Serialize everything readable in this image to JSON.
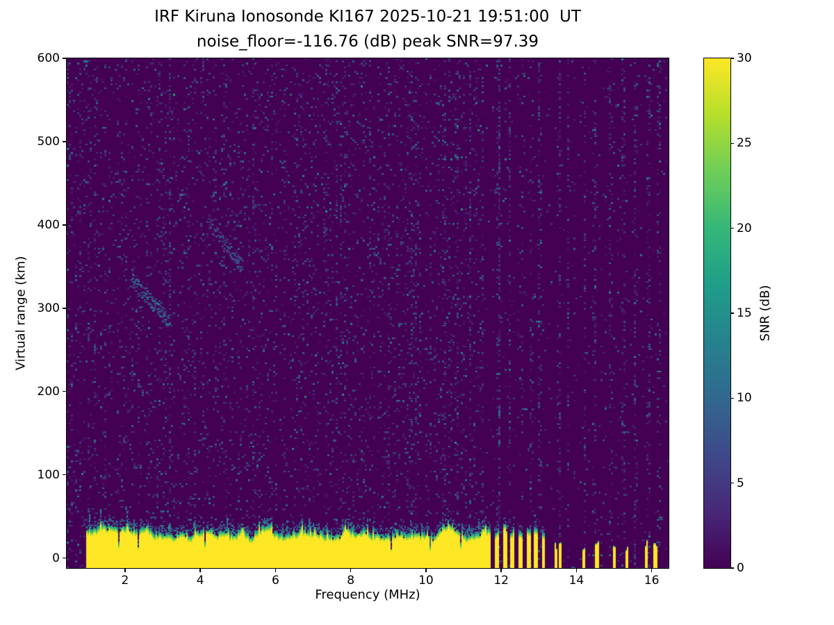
{
  "chart_data": {
    "type": "heatmap",
    "title": "IRF Kiruna Ionosonde KI167 2025-10-21 19:51:00  UT",
    "subtitle": "noise_floor=-116.76 (dB) peak SNR=97.39",
    "xlabel": "Frequency (MHz)",
    "ylabel": "Virtual range (km)",
    "xlim": [
      0.45,
      16.45
    ],
    "ylim": [
      -12,
      600
    ],
    "xticks": [
      2,
      4,
      6,
      8,
      10,
      12,
      14,
      16
    ],
    "yticks": [
      0,
      100,
      200,
      300,
      400,
      500,
      600
    ],
    "noise_floor_db": -116.76,
    "peak_snr_db": 97.39,
    "colorbar": {
      "label": "SNR (dB)",
      "ticks": [
        0,
        5,
        10,
        15,
        20,
        25,
        30
      ],
      "min": 0,
      "max": 30,
      "colormap": "viridis"
    },
    "colormap_stops": [
      "#440154",
      "#482878",
      "#3e4989",
      "#31688e",
      "#26828e",
      "#1f9e89",
      "#35b779",
      "#6ece58",
      "#b5de2b",
      "#fde725"
    ],
    "features": {
      "ground_clutter": {
        "continuous_mhz": [
          0.95,
          11.62
        ],
        "top_km_mean": 28,
        "top_km_range": [
          17,
          40
        ],
        "intermittent_mhz": [
          11.62,
          13.15
        ],
        "intermittent_bar_mhz": 0.11,
        "intermittent_gap_mhz": 0.1,
        "sparse_bars_mhz": [
          13.45,
          13.56,
          14.2,
          14.55,
          15.0,
          15.35,
          15.85,
          16.1
        ],
        "sparse_bar_width_mhz": 0.08,
        "peak_snr_db": 30
      },
      "background_noise": {
        "speckle_db_range": [
          1,
          14
        ],
        "density_left": 0.085,
        "density_right": 0.025,
        "boundary_mhz": 11.62,
        "noise_stripe_mhz": [
          2.8,
          4.65,
          6.25,
          7.35,
          9.0,
          9.75,
          10.35,
          11.15,
          11.9,
          12.2,
          12.5,
          12.75,
          13.0,
          13.5,
          13.75,
          14.2,
          14.5,
          14.9,
          15.2,
          15.55,
          15.9,
          16.15
        ]
      },
      "faint_echoes": [
        {
          "mhz": [
            2.15,
            3.15
          ],
          "km": [
            285,
            335
          ],
          "db": [
            6,
            14
          ]
        },
        {
          "mhz": [
            4.2,
            5.1
          ],
          "km": [
            350,
            405
          ],
          "db": [
            5,
            10
          ]
        }
      ]
    },
    "render_seed": 167
  }
}
